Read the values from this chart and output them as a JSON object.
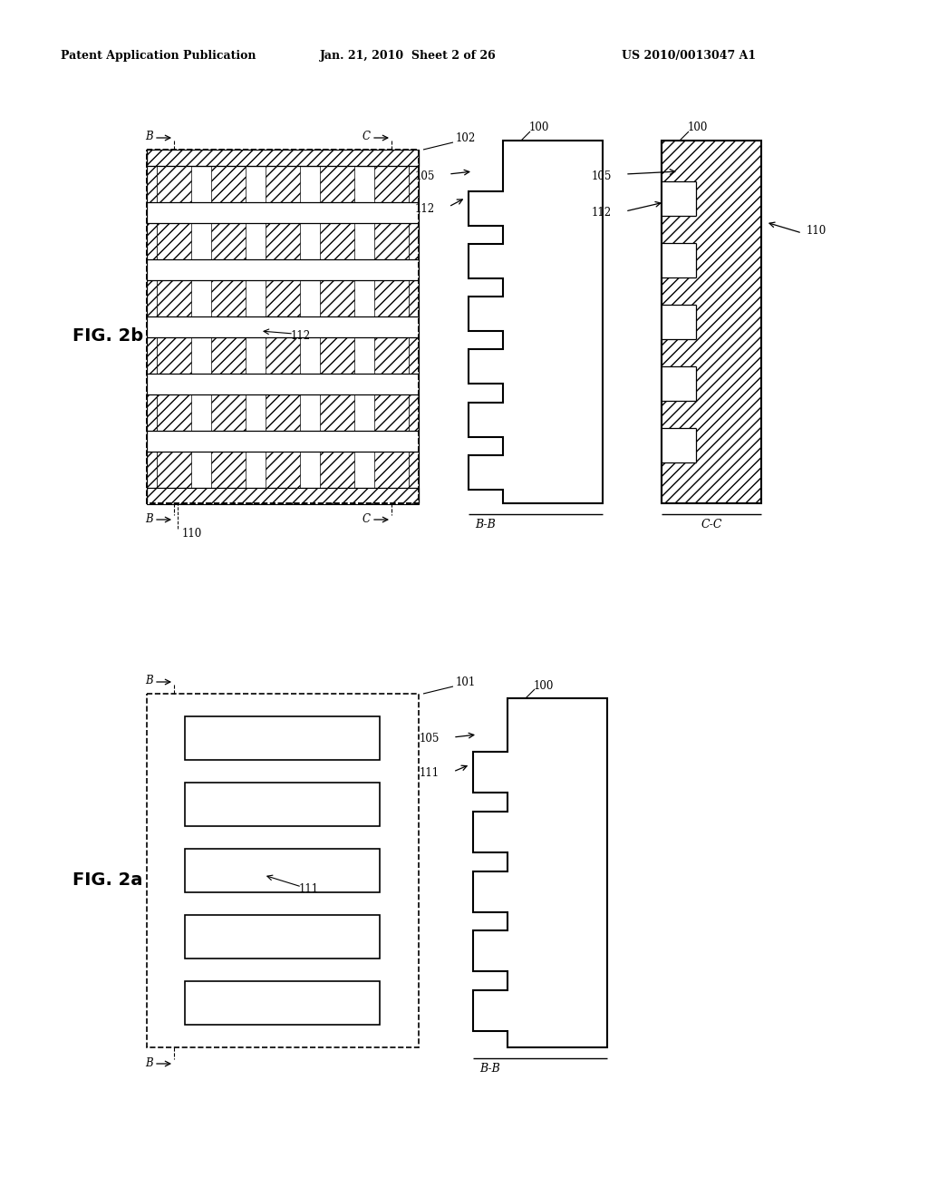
{
  "header_left": "Patent Application Publication",
  "header_mid": "Jan. 21, 2010  Sheet 2 of 26",
  "header_right": "US 2010/0013047 A1",
  "bg_color": "#ffffff",
  "line_color": "#000000"
}
